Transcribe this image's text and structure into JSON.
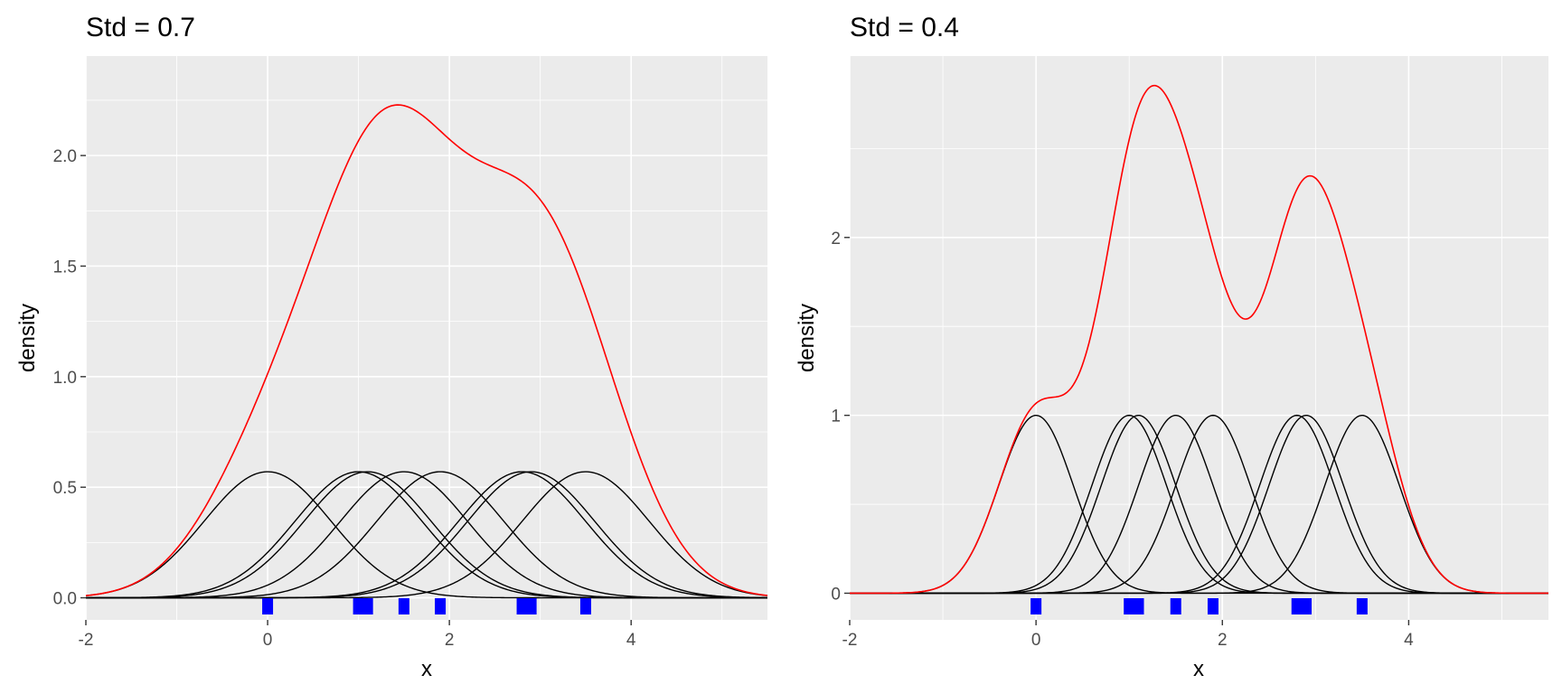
{
  "colors": {
    "panel_bg": "#ebebeb",
    "grid_major": "#ffffff",
    "kernel_line": "#000000",
    "density_line": "#ff0000",
    "rug": "#0000ff",
    "tick_text": "#4d4d4d"
  },
  "chart_data": [
    {
      "type": "line",
      "title": "Std = 0.7",
      "xlabel": "x",
      "ylabel": "density",
      "bandwidth": 0.7,
      "xlim": [
        -2,
        5.5
      ],
      "ylim": [
        -0.1,
        2.45
      ],
      "x_ticks": [
        -2,
        0,
        2,
        4
      ],
      "x_tick_labels": [
        "-2",
        "0",
        "2",
        "4"
      ],
      "y_ticks": [
        0,
        0.5,
        1,
        1.5,
        2
      ],
      "y_tick_labels": [
        "0.0",
        "0.5",
        "1.0",
        "1.5",
        "2.0"
      ],
      "grid": true,
      "legend": "none",
      "observations": [
        0,
        1.0,
        1.1,
        1.5,
        1.9,
        2.8,
        2.9,
        3.5
      ],
      "kernel_peak": 0.57,
      "density_peak": 2.22,
      "density_peak_x": 1.45
    },
    {
      "type": "line",
      "title": "Std = 0.4",
      "xlabel": "x",
      "ylabel": "density",
      "bandwidth": 0.4,
      "xlim": [
        -2,
        5.5
      ],
      "ylim": [
        -0.15,
        3.02
      ],
      "x_ticks": [
        -2,
        0,
        2,
        4
      ],
      "x_tick_labels": [
        "-2",
        "0",
        "2",
        "4"
      ],
      "y_ticks": [
        0,
        1,
        2
      ],
      "y_tick_labels": [
        "0",
        "1",
        "2"
      ],
      "grid": true,
      "legend": "none",
      "observations": [
        0,
        1.0,
        1.1,
        1.5,
        1.9,
        2.8,
        2.9,
        3.5
      ],
      "kernel_peak": 1.0,
      "density_peak": 2.85,
      "density_peak_x": 1.27
    }
  ]
}
